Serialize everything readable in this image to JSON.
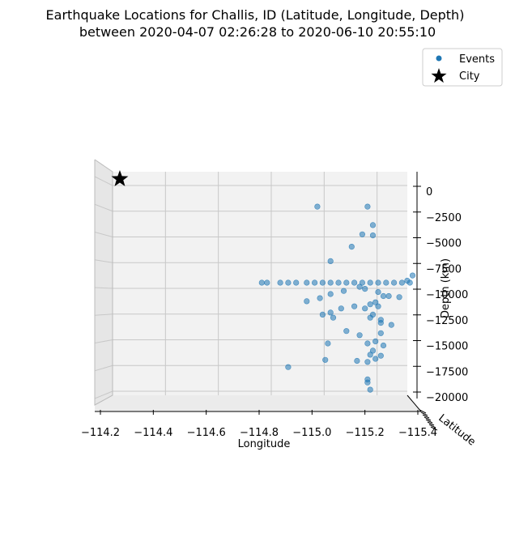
{
  "chart_data": {
    "type": "scatter",
    "title_line1": "Earthquake Locations for Challis, ID (Latitude, Longitude, Depth)",
    "title_line2": "between 2020-04-07 02:26:28 to 2020-06-10 20:55:10",
    "xlabel": "Longitude",
    "ylabel": "Latitude",
    "zlabel": "Depth (km)",
    "xlim": [
      -114.2,
      -115.4
    ],
    "zlim": [
      -20000,
      0
    ],
    "x_ticks": [
      "−114.2",
      "−114.4",
      "−114.6",
      "−114.8",
      "−115.0",
      "−115.2",
      "−115.4"
    ],
    "x_tick_values": [
      -114.2,
      -114.4,
      -114.6,
      -114.8,
      -115.0,
      -115.2,
      -115.4
    ],
    "z_ticks": [
      "0",
      "−2500",
      "−5000",
      "−7500",
      "−10000",
      "−12500",
      "−15000",
      "−17500",
      "−20000"
    ],
    "z_tick_values": [
      0,
      -2500,
      -5000,
      -7500,
      -10000,
      -12500,
      -15000,
      -17500,
      -20000
    ],
    "grid": true,
    "legend_placement": "top-right",
    "legend": [
      {
        "label": "Events",
        "marker": "circle",
        "color": "#1f77b4"
      },
      {
        "label": "City",
        "marker": "star",
        "color": "#000000"
      }
    ],
    "series": [
      {
        "name": "Events",
        "color": "#1f77b4",
        "points": [
          {
            "lon": -115.21,
            "depth": -1500
          },
          {
            "lon": -115.02,
            "depth": -1500
          },
          {
            "lon": -115.23,
            "depth": -3300
          },
          {
            "lon": -115.19,
            "depth": -4200
          },
          {
            "lon": -115.23,
            "depth": -4300
          },
          {
            "lon": -115.15,
            "depth": -5400
          },
          {
            "lon": -115.07,
            "depth": -6800
          },
          {
            "lon": -114.81,
            "depth": -8900
          },
          {
            "lon": -114.83,
            "depth": -8900
          },
          {
            "lon": -114.88,
            "depth": -8900
          },
          {
            "lon": -114.91,
            "depth": -8900
          },
          {
            "lon": -114.94,
            "depth": -8900
          },
          {
            "lon": -114.98,
            "depth": -8900
          },
          {
            "lon": -115.01,
            "depth": -8900
          },
          {
            "lon": -115.04,
            "depth": -8900
          },
          {
            "lon": -115.07,
            "depth": -8900
          },
          {
            "lon": -115.1,
            "depth": -8900
          },
          {
            "lon": -115.13,
            "depth": -8900
          },
          {
            "lon": -115.16,
            "depth": -8900
          },
          {
            "lon": -115.19,
            "depth": -8900
          },
          {
            "lon": -115.22,
            "depth": -8900
          },
          {
            "lon": -115.25,
            "depth": -8900
          },
          {
            "lon": -115.28,
            "depth": -8900
          },
          {
            "lon": -115.31,
            "depth": -8900
          },
          {
            "lon": -115.34,
            "depth": -8900
          },
          {
            "lon": -115.37,
            "depth": -8900
          },
          {
            "lon": -115.38,
            "depth": -8200
          },
          {
            "lon": -115.36,
            "depth": -8700
          },
          {
            "lon": -115.18,
            "depth": -9300
          },
          {
            "lon": -115.2,
            "depth": -9500
          },
          {
            "lon": -115.25,
            "depth": -9800
          },
          {
            "lon": -115.12,
            "depth": -9700
          },
          {
            "lon": -115.07,
            "depth": -10000
          },
          {
            "lon": -115.03,
            "depth": -10400
          },
          {
            "lon": -115.27,
            "depth": -10200
          },
          {
            "lon": -115.29,
            "depth": -10200
          },
          {
            "lon": -115.24,
            "depth": -10800
          },
          {
            "lon": -115.22,
            "depth": -11000
          },
          {
            "lon": -115.25,
            "depth": -11200
          },
          {
            "lon": -115.2,
            "depth": -11400
          },
          {
            "lon": -115.16,
            "depth": -11200
          },
          {
            "lon": -114.98,
            "depth": -10700
          },
          {
            "lon": -115.33,
            "depth": -10300
          },
          {
            "lon": -115.23,
            "depth": -12000
          },
          {
            "lon": -115.22,
            "depth": -12300
          },
          {
            "lon": -115.26,
            "depth": -12500
          },
          {
            "lon": -115.26,
            "depth": -12800
          },
          {
            "lon": -115.3,
            "depth": -13000
          },
          {
            "lon": -115.07,
            "depth": -11800
          },
          {
            "lon": -115.11,
            "depth": -11400
          },
          {
            "lon": -115.04,
            "depth": -12000
          },
          {
            "lon": -115.08,
            "depth": -12300
          },
          {
            "lon": -115.26,
            "depth": -13800
          },
          {
            "lon": -115.24,
            "depth": -14600
          },
          {
            "lon": -115.21,
            "depth": -14800
          },
          {
            "lon": -115.23,
            "depth": -15500
          },
          {
            "lon": -115.27,
            "depth": -15000
          },
          {
            "lon": -115.26,
            "depth": -16000
          },
          {
            "lon": -115.22,
            "depth": -15900
          },
          {
            "lon": -115.18,
            "depth": -14000
          },
          {
            "lon": -115.13,
            "depth": -13600
          },
          {
            "lon": -115.06,
            "depth": -14800
          },
          {
            "lon": -115.05,
            "depth": -16400
          },
          {
            "lon": -115.17,
            "depth": -16500
          },
          {
            "lon": -115.21,
            "depth": -16600
          },
          {
            "lon": -115.24,
            "depth": -16300
          },
          {
            "lon": -114.91,
            "depth": -17100
          },
          {
            "lon": -115.21,
            "depth": -18300
          },
          {
            "lon": -115.21,
            "depth": -18600
          },
          {
            "lon": -115.22,
            "depth": -19300
          }
        ]
      },
      {
        "name": "City",
        "color": "#000000",
        "points": [
          {
            "lon": -114.255,
            "depth": 1200
          }
        ]
      }
    ]
  }
}
